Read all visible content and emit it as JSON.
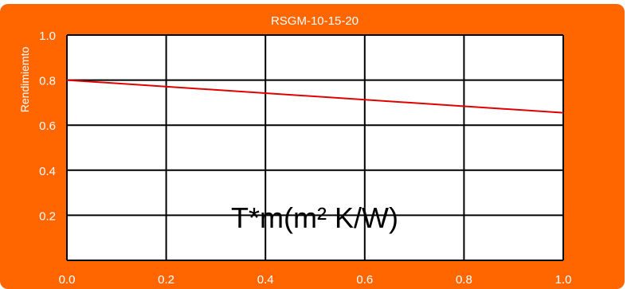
{
  "chart_data": {
    "type": "line",
    "title": "RSGM-10-15-20",
    "xlabel": "T*m(m² K/W)",
    "ylabel": "Rendimiemto",
    "xlim": [
      0.0,
      1.0
    ],
    "ylim": [
      0.0,
      1.0
    ],
    "xticks": [
      "0.0",
      "0.2",
      "0.4",
      "0.6",
      "0.8",
      "1.0"
    ],
    "yticks": [
      "0.2",
      "0.4",
      "0.6",
      "0.8",
      "1.0"
    ],
    "grid": true,
    "colors": {
      "background": "#FF6600",
      "plot_area": "#FFFFFF",
      "series": "#E00000",
      "grid": "#000000",
      "text": "#FFFFFF"
    },
    "series": [
      {
        "x": [
          0.0,
          1.0
        ],
        "values": [
          0.8,
          0.655
        ]
      }
    ]
  }
}
